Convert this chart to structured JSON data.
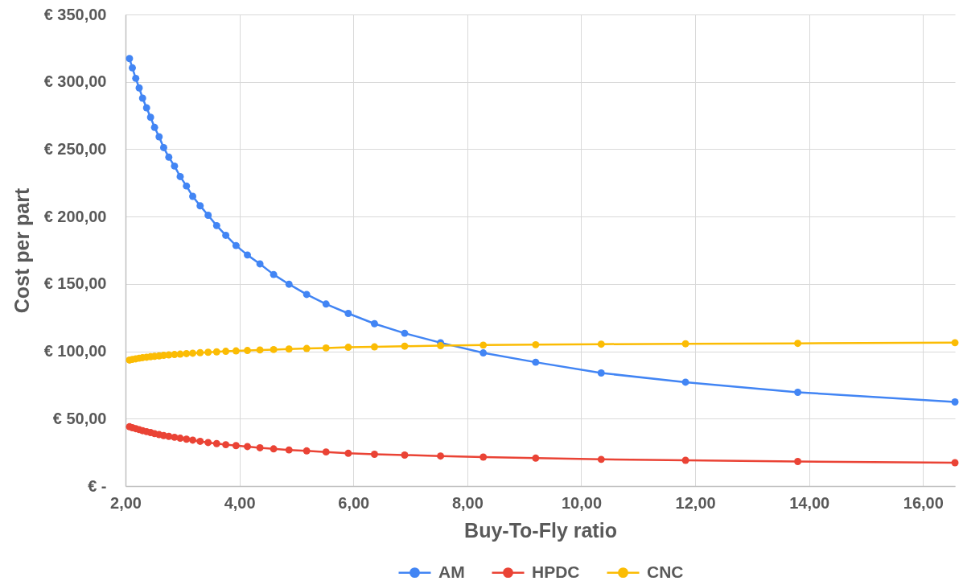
{
  "chart_data": {
    "type": "line",
    "xlabel": "Buy-To-Fly ratio",
    "ylabel": "Cost per part",
    "x": [
      2.07,
      2.12,
      2.18,
      2.24,
      2.3,
      2.37,
      2.44,
      2.51,
      2.59,
      2.67,
      2.76,
      2.86,
      2.96,
      3.07,
      3.18,
      3.31,
      3.45,
      3.6,
      3.76,
      3.94,
      4.14,
      4.36,
      4.6,
      4.87,
      5.18,
      5.52,
      5.91,
      6.37,
      6.9,
      7.53,
      8.28,
      9.2,
      10.35,
      11.83,
      13.8,
      16.56
    ],
    "series": [
      {
        "name": "AM",
        "color": "#4285f4",
        "values": [
          317.3,
          310.4,
          302.6,
          295.5,
          287.9,
          280.7,
          273.7,
          266.2,
          259.2,
          251.2,
          244.1,
          237.5,
          229.7,
          222.7,
          215.0,
          208.0,
          201.0,
          193.3,
          186.1,
          178.5,
          171.5,
          164.9,
          157.0,
          149.8,
          142.2,
          135.1,
          128.1,
          120.5,
          113.4,
          106.4,
          98.8,
          91.9,
          83.9,
          77.1,
          69.6,
          62.4
        ]
      },
      {
        "name": "HPDC",
        "color": "#ea4335",
        "values": [
          44.0,
          43.3,
          42.6,
          41.9,
          41.1,
          40.4,
          39.7,
          38.9,
          38.2,
          37.5,
          36.9,
          36.2,
          35.5,
          34.8,
          34.1,
          33.2,
          32.3,
          31.5,
          30.7,
          30.0,
          29.3,
          28.4,
          27.6,
          26.8,
          26.1,
          25.3,
          24.3,
          23.6,
          23.0,
          22.3,
          21.5,
          20.7,
          19.8,
          19.1,
          18.2,
          17.3
        ]
      },
      {
        "name": "CNC",
        "color": "#fbbc04",
        "values": [
          93.5,
          94.0,
          94.4,
          94.9,
          95.3,
          95.6,
          96.0,
          96.3,
          96.6,
          97.0,
          97.3,
          97.6,
          97.9,
          98.3,
          98.6,
          99.0,
          99.3,
          99.6,
          100.0,
          100.3,
          100.6,
          101.0,
          101.3,
          101.7,
          102.1,
          102.5,
          103.0,
          103.3,
          103.8,
          104.2,
          104.6,
          104.9,
          105.3,
          105.6,
          105.9,
          106.4
        ]
      }
    ],
    "xlim": [
      2,
      16.56
    ],
    "xticks": [
      {
        "value": 2,
        "label": "2,00"
      },
      {
        "value": 4,
        "label": "4,00"
      },
      {
        "value": 6,
        "label": "6,00"
      },
      {
        "value": 8,
        "label": "8,00"
      },
      {
        "value": 10,
        "label": "10,00"
      },
      {
        "value": 12,
        "label": "12,00"
      },
      {
        "value": 14,
        "label": "14,00"
      },
      {
        "value": 16,
        "label": "16,00"
      }
    ],
    "ylim": [
      0,
      350
    ],
    "yticks": [
      {
        "value": 0,
        "label": "€ -"
      },
      {
        "value": 50,
        "label": "€ 50,00"
      },
      {
        "value": 100,
        "label": "€ 100,00"
      },
      {
        "value": 150,
        "label": "€ 150,00"
      },
      {
        "value": 200,
        "label": "€ 200,00"
      },
      {
        "value": 250,
        "label": "€ 250,00"
      },
      {
        "value": 300,
        "label": "€ 300,00"
      },
      {
        "value": 350,
        "label": "€ 350,00"
      }
    ],
    "grid": true,
    "legend": "bottom",
    "marker": "circle",
    "line_style": "solid"
  }
}
